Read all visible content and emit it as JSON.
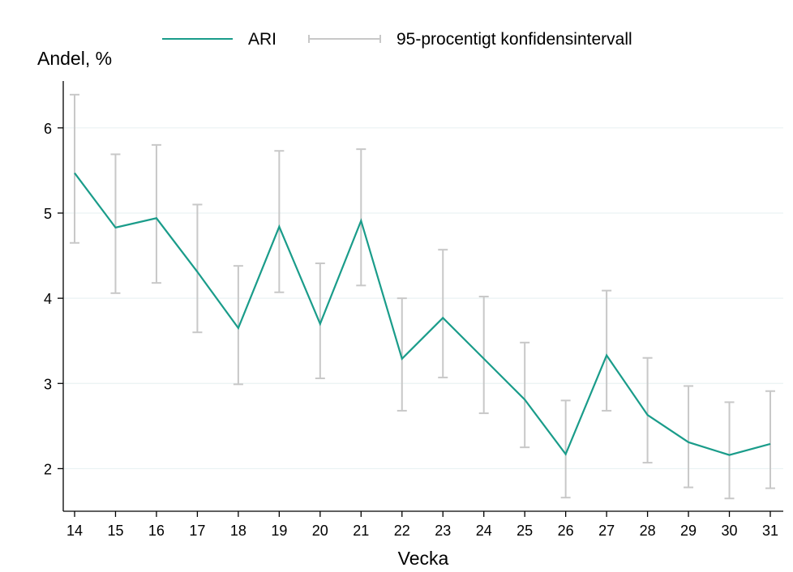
{
  "chart_data": {
    "type": "line",
    "ylabel": "Andel, %",
    "xlabel": "Vecka",
    "x": [
      14,
      15,
      16,
      17,
      18,
      19,
      20,
      21,
      22,
      23,
      24,
      25,
      26,
      27,
      28,
      29,
      30,
      31
    ],
    "x_tick_labels": [
      "14",
      "15",
      "16",
      "17",
      "18",
      "19",
      "20",
      "21",
      "22",
      "23",
      "24",
      "25",
      "26",
      "27",
      "28",
      "29",
      "30",
      "31"
    ],
    "y_tick_labels": [
      "2",
      "3",
      "4",
      "5",
      "6"
    ],
    "y_ticks": [
      2,
      3,
      4,
      5,
      6
    ],
    "ylim": [
      1.5,
      6.55
    ],
    "xlim": [
      14,
      31
    ],
    "grid": true,
    "legend_position": "top",
    "series": [
      {
        "name": "ARI",
        "color": "#1a9c8a",
        "values": [
          5.47,
          4.83,
          4.94,
          4.31,
          3.65,
          4.84,
          3.7,
          4.91,
          3.29,
          3.77,
          3.29,
          2.81,
          2.17,
          3.33,
          2.63,
          2.31,
          2.16,
          2.29
        ]
      }
    ],
    "confidence_interval": {
      "name": "95-procentigt konfidensintervall",
      "color": "#c8c8c8",
      "lower": [
        4.65,
        4.06,
        4.18,
        3.6,
        2.99,
        4.07,
        3.06,
        4.15,
        2.68,
        3.07,
        2.65,
        2.25,
        1.66,
        2.68,
        2.07,
        1.78,
        1.65,
        1.77
      ],
      "upper": [
        6.39,
        5.69,
        5.8,
        5.1,
        4.38,
        5.73,
        4.41,
        5.75,
        4.0,
        4.57,
        4.02,
        3.48,
        2.8,
        4.09,
        3.3,
        2.97,
        2.78,
        2.91
      ]
    },
    "colors": {
      "grid": "#eaf2f3",
      "axis": "#000000"
    }
  }
}
